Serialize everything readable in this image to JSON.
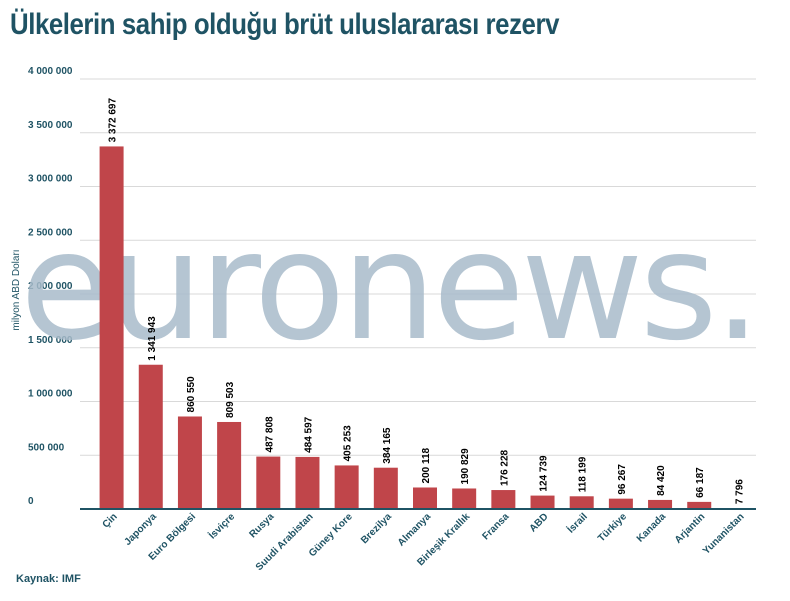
{
  "title": "Ülkelerin sahip olduğu brüt uluslararası rezerv",
  "source": "Kaynak: IMF",
  "watermark": "euronews.",
  "colors": {
    "bar": "#c0454a",
    "title": "#1f5364",
    "axis": "#1f5364",
    "grid": "#d9d9d9"
  },
  "chart_data": {
    "type": "bar",
    "title": "Ülkelerin sahip olduğu brüt uluslararası rezerv",
    "ylabel": "milyon ABD Doları",
    "xlabel": "",
    "ylim": [
      0,
      4000000
    ],
    "yticks": [
      0,
      500000,
      1000000,
      1500000,
      2000000,
      2500000,
      3000000,
      3500000,
      4000000
    ],
    "ytick_labels": [
      "0",
      "500 000",
      "1 000 000",
      "1 500 000",
      "2 000 000",
      "2 500 000",
      "3 000 000",
      "3 500 000",
      "4 000 000"
    ],
    "grid": true,
    "categories": [
      "Çin",
      "Japonya",
      "Euro Bölgesi",
      "İsviçre",
      "Rusya",
      "Suudi Arabistan",
      "Güney Kore",
      "Brezilya",
      "Almanya",
      "Birleşik Krallık",
      "Fransa",
      "ABD",
      "İsrail",
      "Türkiye",
      "Kanada",
      "Arjantin",
      "Yunanistan"
    ],
    "values": [
      3372697,
      1341943,
      860550,
      809503,
      487808,
      484597,
      405253,
      384165,
      200118,
      190829,
      176228,
      124739,
      118199,
      96267,
      84420,
      66187,
      7796
    ],
    "value_labels": [
      "3 372 697",
      "1 341 943",
      "860 550",
      "809 503",
      "487 808",
      "484 597",
      "405 253",
      "384 165",
      "200 118",
      "190 829",
      "176 228",
      "124 739",
      "118 199",
      "96 267",
      "84 420",
      "66 187",
      "7 796"
    ]
  }
}
